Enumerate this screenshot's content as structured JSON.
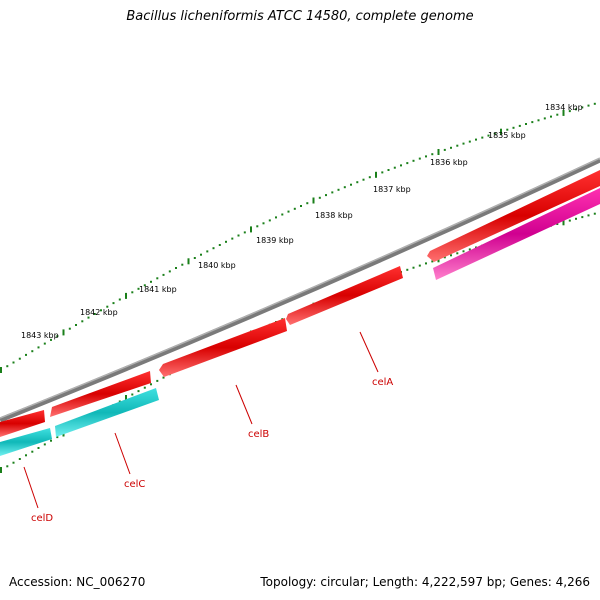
{
  "title": "Bacillus licheniformis ATCC 14580, complete genome",
  "footer": {
    "accession": "Accession: NC_006270",
    "stats": "Topology: circular; Length: 4,222,597 bp; Genes: 4,266"
  },
  "ruler_labels": [
    "1834 kbp",
    "1835 kbp",
    "1836 kbp",
    "1837 kbp",
    "1838 kbp",
    "1839 kbp",
    "1840 kbp",
    "1841 kbp",
    "1842 kbp",
    "1843 kbp"
  ],
  "gene_labels": [
    "celA",
    "celB",
    "celC",
    "celD"
  ],
  "colors": {
    "backbone": "#7a7a7a",
    "forward_gene": "#e00000",
    "reverse_gene_cyan": "#19c8c8",
    "reverse_gene_magenta": "#e0109a",
    "tick": "#1a7f1a",
    "gene_label": "#cc0000"
  }
}
